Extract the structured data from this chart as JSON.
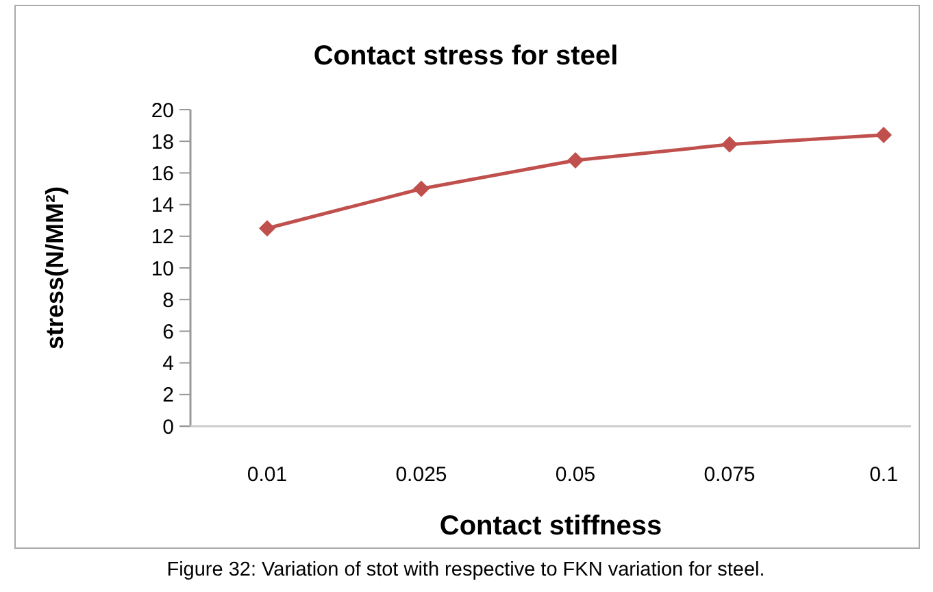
{
  "chart_data": {
    "type": "line",
    "title": "Contact stress for steel",
    "xlabel": "Contact stiffness",
    "ylabel": "stress(N/MM²)",
    "categories": [
      "0.01",
      "0.025",
      "0.05",
      "0.075",
      "0.1"
    ],
    "series": [
      {
        "color": "#c0504d",
        "values": [
          12.5,
          15.0,
          16.8,
          17.8,
          18.4
        ]
      }
    ],
    "ylim": [
      0,
      20
    ],
    "yticks": [
      0,
      2,
      4,
      6,
      8,
      10,
      12,
      14,
      16,
      18,
      20
    ],
    "marker": "diamond",
    "annotations": [
      "Figure 32: Variation of stot with respective to FKN variation for steel."
    ]
  }
}
